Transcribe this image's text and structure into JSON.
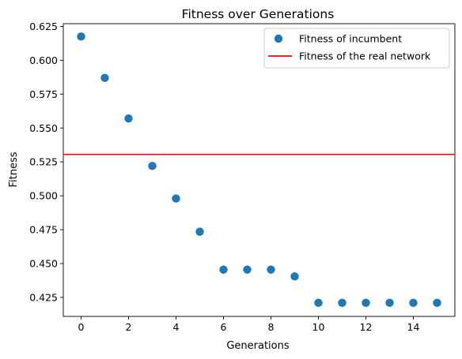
{
  "chart_data": {
    "type": "scatter",
    "title": "Fitness over Generations",
    "xlabel": "Generations",
    "ylabel": "Fitness",
    "xlim": [
      -0.75,
      15.75
    ],
    "ylim": [
      0.411,
      0.627
    ],
    "xticks": [
      0,
      2,
      4,
      6,
      8,
      10,
      12,
      14
    ],
    "xtick_labels": [
      "0",
      "2",
      "4",
      "6",
      "8",
      "10",
      "12",
      "14"
    ],
    "yticks": [
      0.425,
      0.45,
      0.475,
      0.5,
      0.525,
      0.55,
      0.575,
      0.6,
      0.625
    ],
    "ytick_labels": [
      "0.425",
      "0.450",
      "0.475",
      "0.500",
      "0.525",
      "0.550",
      "0.575",
      "0.600",
      "0.625"
    ],
    "grid": false,
    "legend_position": "top-right",
    "series": [
      {
        "name": "Fitness of incumbent",
        "kind": "scatter",
        "color": "#1f77b4",
        "x": [
          0,
          1,
          2,
          3,
          4,
          5,
          6,
          7,
          8,
          9,
          10,
          11,
          12,
          13,
          14,
          15
        ],
        "y": [
          0.6175,
          0.587,
          0.557,
          0.522,
          0.498,
          0.4735,
          0.4455,
          0.4455,
          0.4455,
          0.4405,
          0.421,
          0.421,
          0.421,
          0.421,
          0.421,
          0.421
        ]
      },
      {
        "name": "Fitness of the real network",
        "kind": "hline",
        "color": "#ff0000",
        "y": 0.5305
      }
    ]
  }
}
